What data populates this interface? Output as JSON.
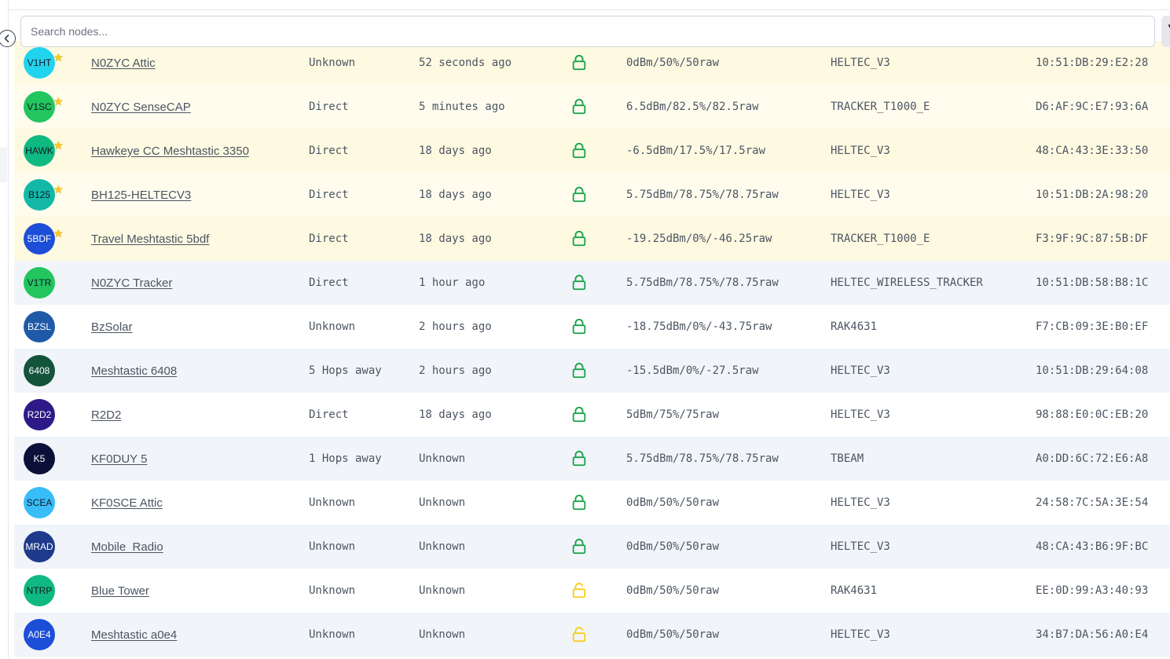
{
  "search": {
    "placeholder": "Search nodes...",
    "value": ""
  },
  "colors": {
    "favorite_row_odd": "#fef9e1",
    "favorite_row_even": "#fffcee",
    "row_odd": "#ffffff",
    "row_even": "#f1f5f9",
    "lock_secure": "#16a34a",
    "lock_open": "#facc15",
    "favorite_star": "#facc15"
  },
  "icons": {
    "collapse": "chevron-left-circle-icon",
    "favorite": "star-icon",
    "lock_closed": "lock-closed-icon",
    "lock_open": "lock-open-icon"
  },
  "nodes": [
    {
      "short": "V1HT",
      "avatar_bg": "#22d3ee",
      "avatar_fg": "#111827",
      "favorite": true,
      "name": "N0ZYC Attic",
      "connection": "Unknown",
      "last_heard": "52 seconds ago",
      "secure": true,
      "signal": "0dBm/50%/50raw",
      "hardware": "HELTEC_V3",
      "mac": "10:51:DB:29:E2:28"
    },
    {
      "short": "V1SC",
      "avatar_bg": "#22c55e",
      "avatar_fg": "#111827",
      "favorite": true,
      "name": "N0ZYC SenseCAP",
      "connection": "Direct",
      "last_heard": "5 minutes ago",
      "secure": true,
      "signal": "6.5dBm/82.5%/82.5raw",
      "hardware": "TRACKER_T1000_E",
      "mac": "D6:AF:9C:E7:93:6A"
    },
    {
      "short": "HAWK",
      "avatar_bg": "#10b981",
      "avatar_fg": "#111827",
      "favorite": true,
      "name": "Hawkeye CC Meshtastic 3350",
      "connection": "Direct",
      "last_heard": "18 days ago",
      "secure": true,
      "signal": "-6.5dBm/17.5%/17.5raw",
      "hardware": "HELTEC_V3",
      "mac": "48:CA:43:3E:33:50"
    },
    {
      "short": "B125",
      "avatar_bg": "#14b8a6",
      "avatar_fg": "#111827",
      "favorite": true,
      "name": "BH125-HELTECV3",
      "connection": "Direct",
      "last_heard": "18 days ago",
      "secure": true,
      "signal": "5.75dBm/78.75%/78.75raw",
      "hardware": "HELTEC_V3",
      "mac": "10:51:DB:2A:98:20"
    },
    {
      "short": "5BDF",
      "avatar_bg": "#1d4ed8",
      "avatar_fg": "#ffffff",
      "favorite": true,
      "name": "Travel Meshtastic 5bdf",
      "connection": "Direct",
      "last_heard": "18 days ago",
      "secure": true,
      "signal": "-19.25dBm/0%/-46.25raw",
      "hardware": "TRACKER_T1000_E",
      "mac": "F3:9F:9C:87:5B:DF"
    },
    {
      "short": "V1TR",
      "avatar_bg": "#22c55e",
      "avatar_fg": "#111827",
      "favorite": false,
      "name": "N0ZYC Tracker",
      "connection": "Direct",
      "last_heard": "1 hour ago",
      "secure": true,
      "signal": "5.75dBm/78.75%/78.75raw",
      "hardware": "HELTEC_WIRELESS_TRACKER",
      "mac": "10:51:DB:58:B8:1C"
    },
    {
      "short": "BZSL",
      "avatar_bg": "#1e5aa8",
      "avatar_fg": "#ffffff",
      "favorite": false,
      "name": "BzSolar",
      "connection": "Unknown",
      "last_heard": "2 hours ago",
      "secure": true,
      "signal": "-18.75dBm/0%/-43.75raw",
      "hardware": "RAK4631",
      "mac": "F7:CB:09:3E:B0:EF"
    },
    {
      "short": "6408",
      "avatar_bg": "#14533c",
      "avatar_fg": "#ffffff",
      "favorite": false,
      "name": "Meshtastic 6408",
      "connection": "5 Hops away",
      "last_heard": "2 hours ago",
      "secure": true,
      "signal": "-15.5dBm/0%/-27.5raw",
      "hardware": "HELTEC_V3",
      "mac": "10:51:DB:29:64:08"
    },
    {
      "short": "R2D2",
      "avatar_bg": "#2e1a87",
      "avatar_fg": "#ffffff",
      "favorite": false,
      "name": "R2D2",
      "connection": "Direct",
      "last_heard": "18 days ago",
      "secure": true,
      "signal": "5dBm/75%/75raw",
      "hardware": "HELTEC_V3",
      "mac": "98:88:E0:0C:EB:20"
    },
    {
      "short": "K5",
      "avatar_bg": "#0b1038",
      "avatar_fg": "#ffffff",
      "favorite": false,
      "name": "KF0DUY 5",
      "connection": "1 Hops away",
      "last_heard": "Unknown",
      "secure": true,
      "signal": "5.75dBm/78.75%/78.75raw",
      "hardware": "TBEAM",
      "mac": "A0:DD:6C:72:E6:A8"
    },
    {
      "short": "SCEA",
      "avatar_bg": "#38bdf8",
      "avatar_fg": "#111827",
      "favorite": false,
      "name": "KF0SCE Attic",
      "connection": "Unknown",
      "last_heard": "Unknown",
      "secure": true,
      "signal": "0dBm/50%/50raw",
      "hardware": "HELTEC_V3",
      "mac": "24:58:7C:5A:3E:54"
    },
    {
      "short": "MRAD",
      "avatar_bg": "#1e3a8a",
      "avatar_fg": "#ffffff",
      "favorite": false,
      "name": "Mobile_Radio",
      "connection": "Unknown",
      "last_heard": "Unknown",
      "secure": true,
      "signal": "0dBm/50%/50raw",
      "hardware": "HELTEC_V3",
      "mac": "48:CA:43:B6:9F:BC"
    },
    {
      "short": "NTRP",
      "avatar_bg": "#10b981",
      "avatar_fg": "#111827",
      "favorite": false,
      "name": "Blue Tower",
      "connection": "Unknown",
      "last_heard": "Unknown",
      "secure": false,
      "signal": "0dBm/50%/50raw",
      "hardware": "RAK4631",
      "mac": "EE:0D:99:A3:40:93"
    },
    {
      "short": "A0E4",
      "avatar_bg": "#1d4ed8",
      "avatar_fg": "#ffffff",
      "favorite": false,
      "name": "Meshtastic a0e4",
      "connection": "Unknown",
      "last_heard": "Unknown",
      "secure": false,
      "signal": "0dBm/50%/50raw",
      "hardware": "HELTEC_V3",
      "mac": "34:B7:DA:56:A0:E4"
    }
  ]
}
